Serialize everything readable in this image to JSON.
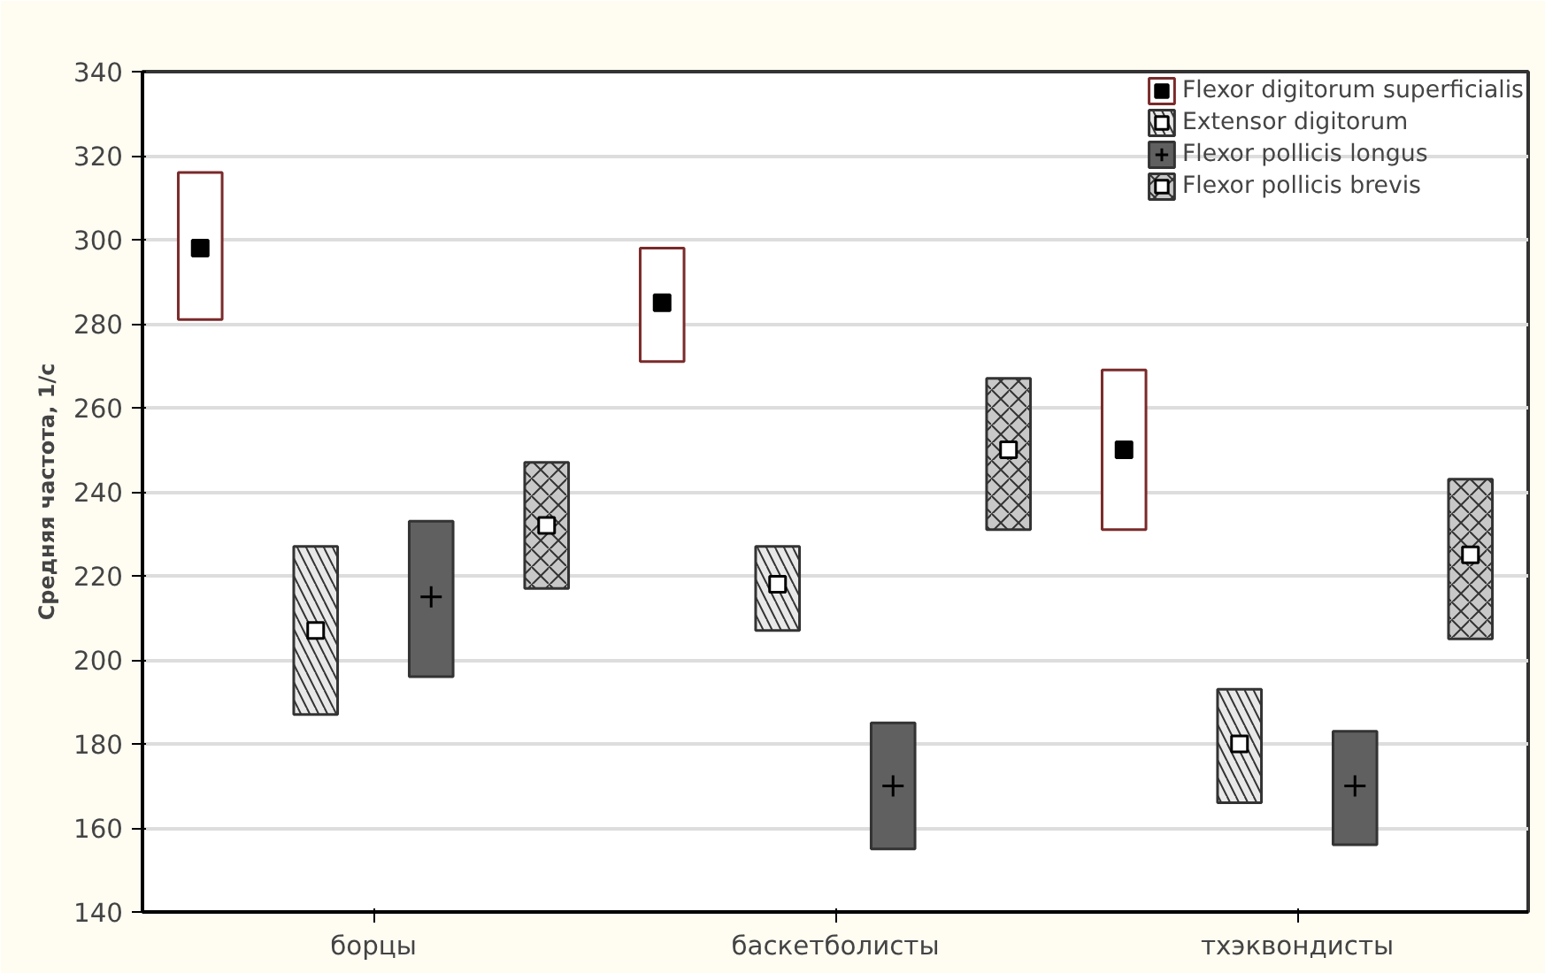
{
  "chart_data": {
    "type": "box",
    "ylabel": "Средняя частота, 1/с",
    "categories": [
      "борцы",
      "баскетболисты",
      "тхэквондисты"
    ],
    "ylim": [
      140,
      340
    ],
    "yticks": [
      140,
      160,
      180,
      200,
      220,
      240,
      260,
      280,
      300,
      320,
      340
    ],
    "grid": "y",
    "legend": "top right",
    "series": [
      {
        "name": "Flexor digitorum superficialis",
        "color": "#7a2a2a",
        "marker": "square",
        "boxes": [
          {
            "low": 281,
            "q1": 281,
            "median": 298,
            "q3": 316,
            "high": 316
          },
          {
            "low": 271,
            "q1": 271,
            "median": 285,
            "q3": 298,
            "high": 298
          },
          {
            "low": 231,
            "q1": 231,
            "median": 250,
            "q3": 269,
            "high": 269
          }
        ]
      },
      {
        "name": "Extensor digitorum",
        "color": "#e8e8e8",
        "marker": "square",
        "boxes": [
          {
            "low": 187,
            "q1": 187,
            "median": 207,
            "q3": 227,
            "high": 227
          },
          {
            "low": 207,
            "q1": 207,
            "median": 218,
            "q3": 227,
            "high": 227
          },
          {
            "low": 166,
            "q1": 166,
            "median": 180,
            "q3": 193,
            "high": 193
          }
        ]
      },
      {
        "name": "Flexor pollicis longus",
        "color": "#606060",
        "marker": "cross",
        "boxes": [
          {
            "low": 196,
            "q1": 196,
            "median": 215,
            "q3": 233,
            "high": 233
          },
          {
            "low": 155,
            "q1": 155,
            "median": 170,
            "q3": 185,
            "high": 185
          },
          {
            "low": 156,
            "q1": 156,
            "median": 170,
            "q3": 183,
            "high": 183
          }
        ]
      },
      {
        "name": "Flexor pollicis brevis",
        "color": "#c8c8c8",
        "marker": "square",
        "boxes": [
          {
            "low": 217,
            "q1": 217,
            "median": 232,
            "q3": 247,
            "high": 247
          },
          {
            "low": 231,
            "q1": 231,
            "median": 250,
            "q3": 267,
            "high": 267
          },
          {
            "low": 205,
            "q1": 205,
            "median": 225,
            "q3": 243,
            "high": 243
          }
        ]
      }
    ]
  }
}
